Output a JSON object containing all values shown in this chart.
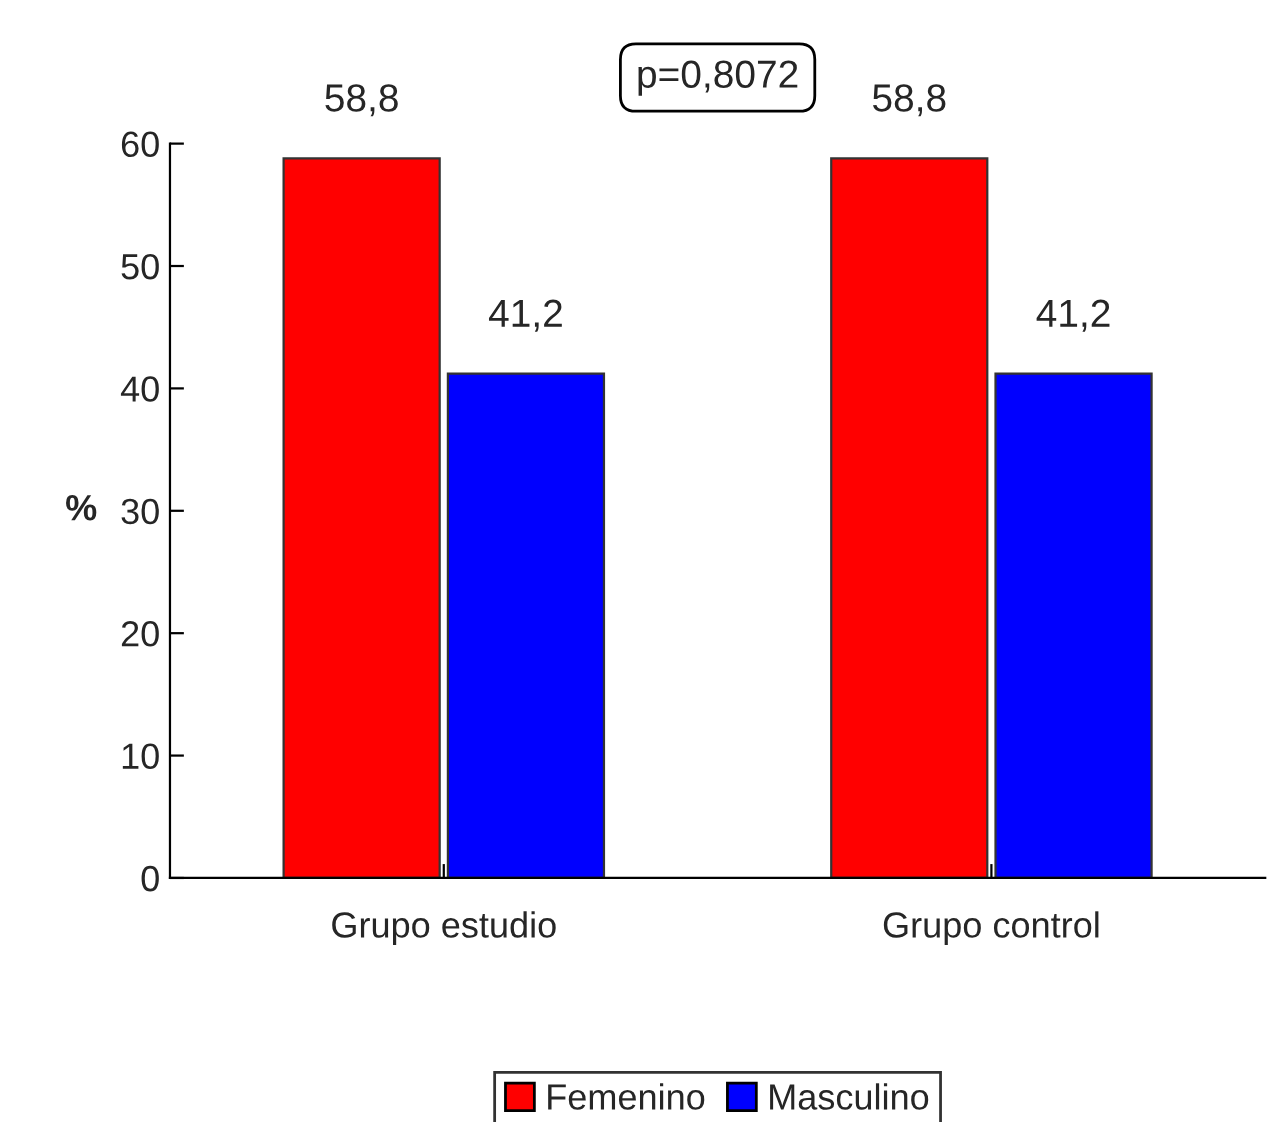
{
  "chart_data": {
    "type": "bar",
    "ylabel": "%",
    "categories": [
      "Grupo estudio",
      "Grupo control"
    ],
    "series": [
      {
        "name": "Femenino",
        "color": "#ff0000",
        "values": [
          58.8,
          58.8
        ],
        "value_labels": [
          "58,8",
          "58,8"
        ]
      },
      {
        "name": "Masculino",
        "color": "#0000ff",
        "values": [
          41.2,
          41.2
        ],
        "value_labels": [
          "41,2",
          "41,2"
        ]
      }
    ],
    "ylim": [
      0,
      60
    ],
    "yticks": [
      0,
      10,
      20,
      30,
      40,
      50,
      60
    ],
    "annotations": [
      "p=0,8072"
    ],
    "grid": false,
    "legend": "bottom"
  }
}
